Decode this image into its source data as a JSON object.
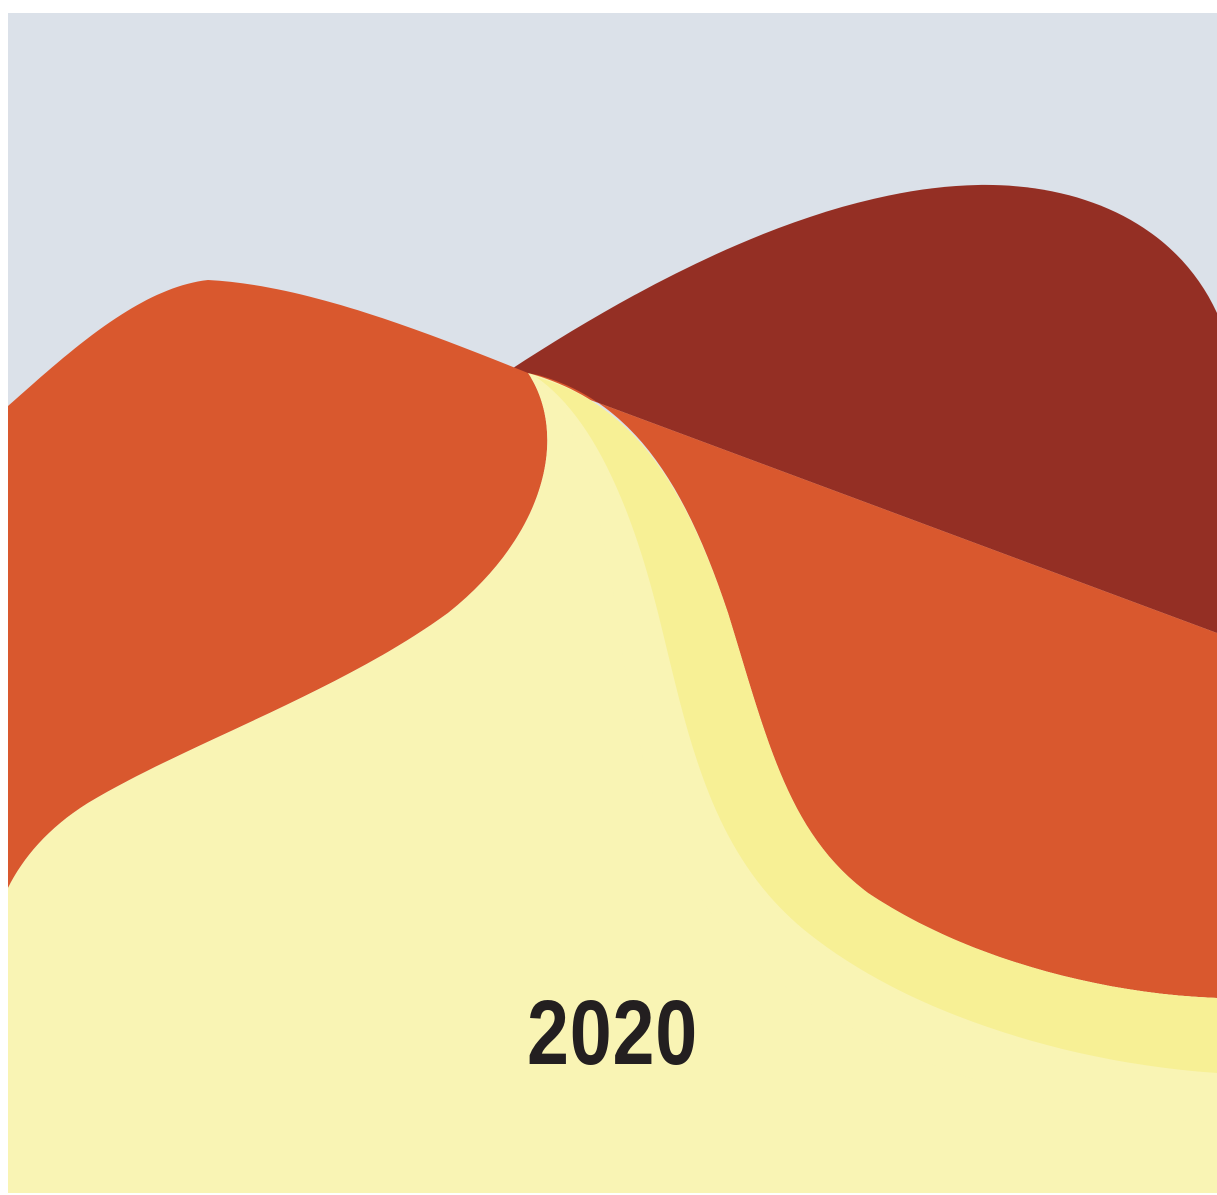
{
  "artwork": {
    "year": "2020",
    "colors": {
      "sky": "#dbe1e9",
      "dune_dark": "#942f24",
      "dune_orange": "#d9582e",
      "sand_pale": "#f9f4b4",
      "sand_bright": "#f7ef8f",
      "text": "#231f20"
    }
  }
}
